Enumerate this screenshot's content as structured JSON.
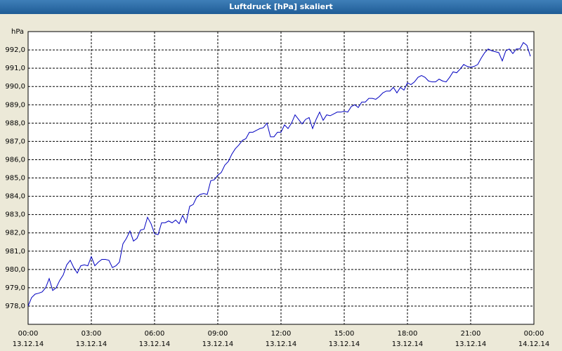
{
  "chart_data": {
    "type": "line",
    "title": "Luftdruck [hPa] skaliert",
    "y_unit": "hPa",
    "x": [
      0,
      10,
      20,
      30,
      40,
      50,
      60,
      70,
      80,
      90,
      100,
      110,
      120,
      130,
      140,
      150,
      160,
      170,
      180,
      190,
      200,
      210,
      220,
      230,
      240,
      250,
      260,
      270,
      280,
      290,
      300,
      310,
      320,
      330,
      340,
      350,
      360,
      370,
      380,
      390,
      400,
      410,
      420,
      430,
      440,
      450,
      460,
      470,
      480,
      490,
      500,
      510,
      520,
      530,
      540,
      550,
      560,
      570,
      580,
      590,
      600,
      610,
      620,
      630,
      640,
      650,
      660,
      670,
      680,
      690,
      700,
      710,
      720,
      730,
      740,
      750,
      760,
      770,
      780,
      790,
      800,
      810,
      820,
      830,
      840,
      850,
      860,
      870,
      880,
      890,
      900,
      910,
      920,
      930,
      940,
      950,
      960,
      970,
      980,
      990,
      1000,
      1010,
      1020,
      1030,
      1040,
      1050,
      1060,
      1070,
      1080,
      1090,
      1100,
      1110,
      1120,
      1130,
      1140,
      1150,
      1160,
      1170,
      1180,
      1190,
      1200,
      1210,
      1220,
      1230,
      1240,
      1250,
      1260,
      1270,
      1280,
      1290,
      1300,
      1310,
      1320,
      1330,
      1340,
      1350,
      1360,
      1370,
      1380,
      1390,
      1400,
      1410,
      1420,
      1430
    ],
    "series": [
      {
        "color": "#0000c0",
        "values": [
          978.0,
          978.46,
          978.65,
          978.7,
          978.77,
          979.0,
          979.5,
          978.85,
          979.0,
          979.4,
          979.7,
          980.25,
          980.5,
          980.1,
          979.8,
          980.2,
          980.25,
          980.2,
          980.7,
          980.2,
          980.4,
          980.55,
          980.55,
          980.5,
          980.1,
          980.2,
          980.4,
          981.4,
          981.7,
          982.1,
          981.55,
          981.7,
          982.15,
          982.2,
          982.85,
          982.5,
          981.95,
          981.9,
          982.55,
          982.55,
          982.65,
          982.55,
          982.7,
          982.5,
          982.95,
          982.55,
          983.45,
          983.55,
          983.95,
          984.1,
          984.15,
          984.1,
          984.85,
          984.9,
          985.15,
          985.3,
          985.7,
          985.9,
          986.3,
          986.6,
          986.8,
          987.05,
          987.15,
          987.5,
          987.5,
          987.6,
          987.7,
          987.75,
          988.0,
          987.25,
          987.25,
          987.5,
          987.5,
          987.9,
          987.7,
          988.0,
          988.45,
          988.2,
          987.95,
          988.2,
          988.3,
          987.7,
          988.2,
          988.6,
          988.15,
          988.45,
          988.4,
          988.5,
          988.6,
          988.6,
          988.65,
          988.6,
          988.9,
          989.0,
          988.85,
          989.15,
          989.15,
          989.35,
          989.35,
          989.3,
          989.45,
          989.65,
          989.75,
          989.75,
          989.95,
          989.65,
          989.95,
          989.8,
          990.2,
          990.1,
          990.25,
          990.5,
          990.6,
          990.5,
          990.3,
          990.25,
          990.25,
          990.4,
          990.3,
          990.25,
          990.5,
          990.8,
          990.75,
          990.95,
          991.2,
          991.1,
          991.05,
          991.1,
          991.2,
          991.55,
          991.85,
          992.05,
          991.95,
          991.9,
          991.85,
          991.4,
          991.95,
          992.05,
          991.8,
          992.05,
          992.05,
          992.4,
          992.25,
          991.65
        ]
      }
    ],
    "xlim": [
      0,
      1440
    ],
    "xticks": [
      {
        "value": 0,
        "label": "00:00",
        "date": "13.12.14"
      },
      {
        "value": 180,
        "label": "03:00",
        "date": "13.12.14"
      },
      {
        "value": 360,
        "label": "06:00",
        "date": "13.12.14"
      },
      {
        "value": 540,
        "label": "09:00",
        "date": "13.12.14"
      },
      {
        "value": 720,
        "label": "12:00",
        "date": "13.12.14"
      },
      {
        "value": 900,
        "label": "15:00",
        "date": "13.12.14"
      },
      {
        "value": 1080,
        "label": "18:00",
        "date": "13.12.14"
      },
      {
        "value": 1260,
        "label": "21:00",
        "date": "13.12.14"
      },
      {
        "value": 1440,
        "label": "00:00",
        "date": "14.12.14"
      }
    ],
    "ylim": [
      977,
      993
    ],
    "yticks": [
      {
        "value": 978,
        "label": "978,0"
      },
      {
        "value": 979,
        "label": "979,0"
      },
      {
        "value": 980,
        "label": "980,0"
      },
      {
        "value": 981,
        "label": "981,0"
      },
      {
        "value": 982,
        "label": "982,0"
      },
      {
        "value": 983,
        "label": "983,0"
      },
      {
        "value": 984,
        "label": "984,0"
      },
      {
        "value": 985,
        "label": "985,0"
      },
      {
        "value": 986,
        "label": "986,0"
      },
      {
        "value": 987,
        "label": "987,0"
      },
      {
        "value": 988,
        "label": "988,0"
      },
      {
        "value": 989,
        "label": "989,0"
      },
      {
        "value": 990,
        "label": "990,0"
      },
      {
        "value": 991,
        "label": "991,0"
      },
      {
        "value": 992,
        "label": "992,0"
      }
    ],
    "grid": true
  }
}
